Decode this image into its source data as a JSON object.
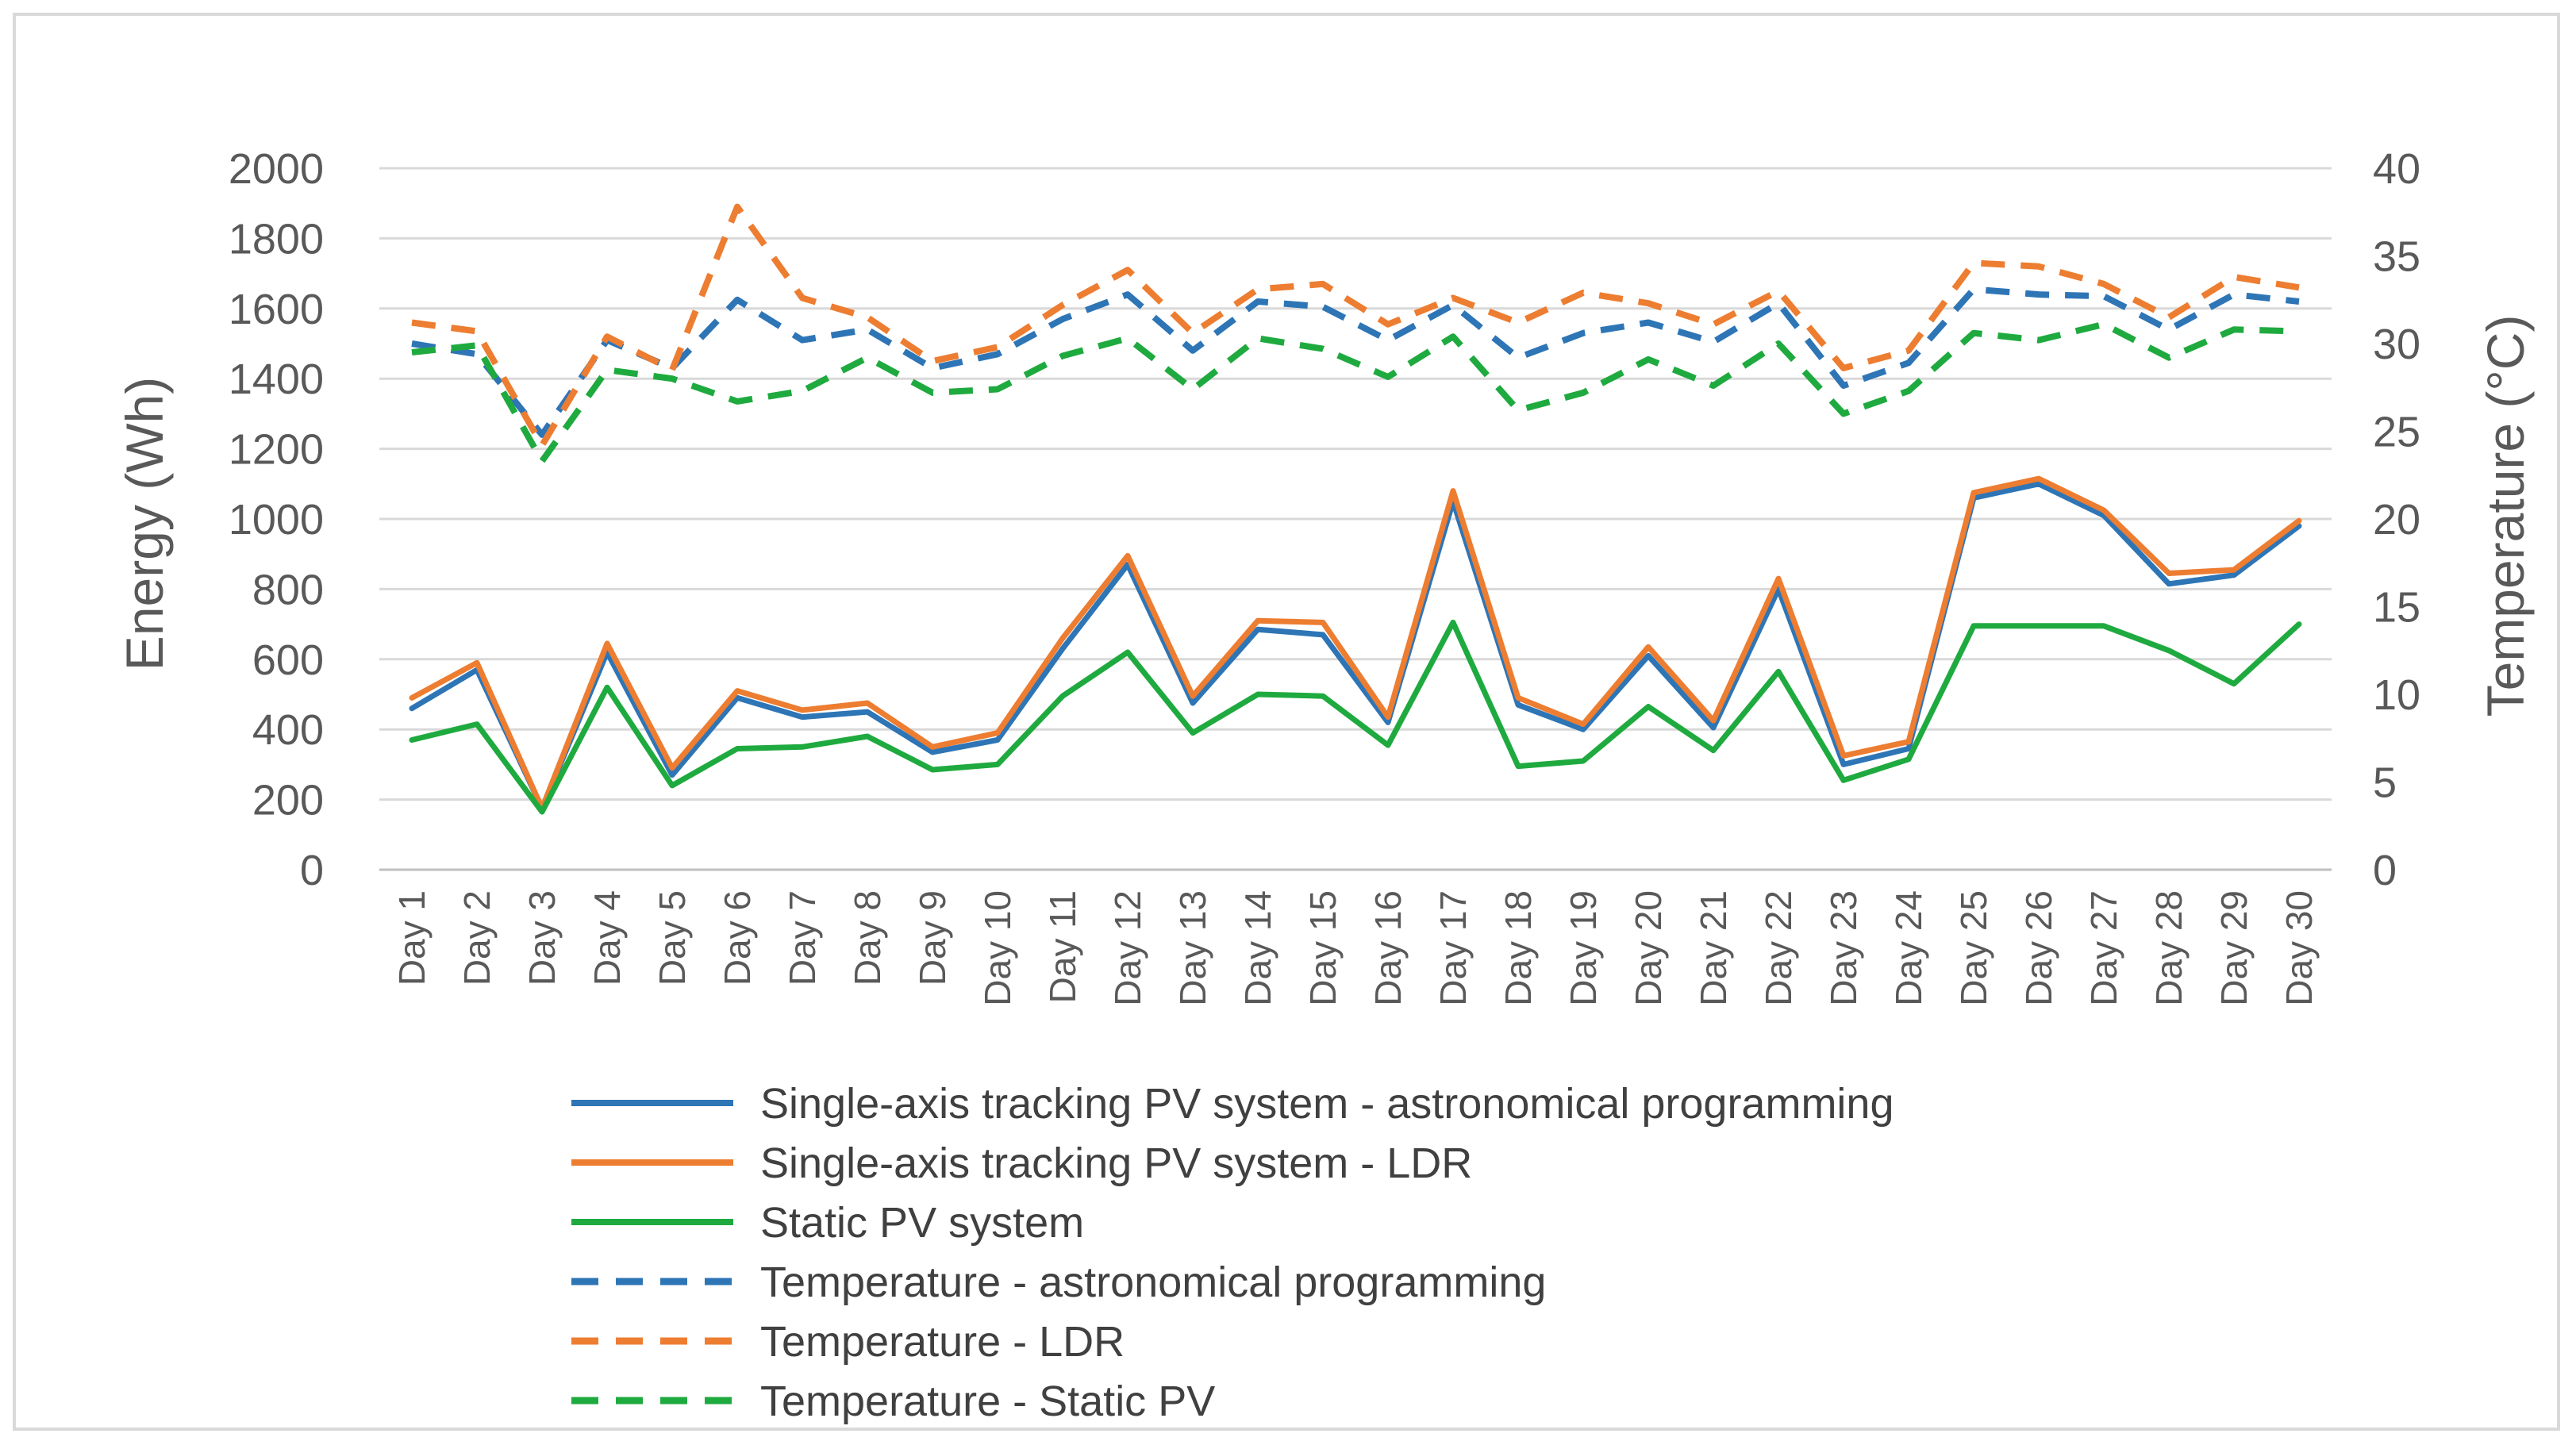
{
  "chart_data": {
    "type": "line",
    "categories": [
      "Day 1",
      "Day 2",
      "Day 3",
      "Day 4",
      "Day 5",
      "Day 6",
      "Day 7",
      "Day 8",
      "Day 9",
      "Day 10",
      "Day 11",
      "Day 12",
      "Day 13",
      "Day 14",
      "Day 15",
      "Day 16",
      "Day 17",
      "Day 18",
      "Day 19",
      "Day 20",
      "Day 21",
      "Day 22",
      "Day 23",
      "Day 24",
      "Day 25",
      "Day 26",
      "Day 27",
      "Day 28",
      "Day 29",
      "Day 30"
    ],
    "ylabel": "Energy (Wh)",
    "y2label": "Temperature (°C)",
    "ylim": [
      0,
      2000
    ],
    "y2lim": [
      0,
      40
    ],
    "yticks": [
      "0",
      "200",
      "400",
      "600",
      "800",
      "1000",
      "1200",
      "1400",
      "1600",
      "1800",
      "2000"
    ],
    "y2ticks": [
      "0",
      "5",
      "10",
      "15",
      "20",
      "25",
      "30",
      "35",
      "40"
    ],
    "grid": true,
    "legend_position": "bottom",
    "series": [
      {
        "name": "Single-axis tracking PV system - astronomical programming",
        "axis": "left",
        "style": "solid",
        "color": "#2E75B6",
        "values": [
          460,
          570,
          175,
          620,
          270,
          490,
          435,
          450,
          335,
          370,
          630,
          870,
          475,
          685,
          670,
          420,
          1050,
          470,
          400,
          610,
          405,
          800,
          300,
          345,
          1060,
          1100,
          1010,
          815,
          840,
          980
        ]
      },
      {
        "name": "Single-axis tracking PV system - LDR",
        "axis": "left",
        "style": "solid",
        "color": "#ED7D31",
        "values": [
          490,
          590,
          175,
          645,
          290,
          510,
          455,
          475,
          350,
          390,
          660,
          895,
          495,
          710,
          705,
          435,
          1080,
          490,
          415,
          635,
          425,
          830,
          325,
          365,
          1075,
          1115,
          1025,
          845,
          855,
          995
        ]
      },
      {
        "name": "Static PV system",
        "axis": "left",
        "style": "solid",
        "color": "#1FAA3F",
        "values": [
          370,
          415,
          165,
          520,
          240,
          345,
          350,
          380,
          285,
          300,
          495,
          620,
          390,
          500,
          495,
          355,
          705,
          295,
          310,
          465,
          340,
          565,
          255,
          315,
          695,
          695,
          695,
          625,
          530,
          700
        ]
      },
      {
        "name": "Temperature - astronomical programming",
        "axis": "right",
        "style": "dashed",
        "color": "#2E75B6",
        "values": [
          30.0,
          29.4,
          24.8,
          30.2,
          28.6,
          32.5,
          30.2,
          30.8,
          28.6,
          29.4,
          31.4,
          32.8,
          29.6,
          32.4,
          32.1,
          30.2,
          32.2,
          29.2,
          30.6,
          31.2,
          30.1,
          32.3,
          27.6,
          28.9,
          33.1,
          32.8,
          32.7,
          30.8,
          32.8,
          32.4
        ]
      },
      {
        "name": "Temperature - LDR",
        "axis": "right",
        "style": "dashed",
        "color": "#ED7D31",
        "values": [
          31.2,
          30.7,
          24.2,
          30.4,
          28.5,
          37.8,
          32.6,
          31.5,
          29.0,
          29.8,
          32.2,
          34.2,
          30.6,
          33.1,
          33.4,
          31.1,
          32.6,
          31.2,
          32.9,
          32.3,
          31.1,
          33.0,
          28.6,
          29.6,
          34.6,
          34.4,
          33.4,
          31.5,
          33.8,
          33.2
        ]
      },
      {
        "name": "Temperature - Static PV",
        "axis": "right",
        "style": "dashed",
        "color": "#1FAA3F",
        "values": [
          29.5,
          29.9,
          23.3,
          28.5,
          28.0,
          26.7,
          27.3,
          29.2,
          27.2,
          27.4,
          29.3,
          30.3,
          27.4,
          30.3,
          29.7,
          28.1,
          30.4,
          26.2,
          27.2,
          29.1,
          27.6,
          30.0,
          26.0,
          27.3,
          30.6,
          30.2,
          31.1,
          29.2,
          30.8,
          30.7
        ]
      }
    ]
  }
}
